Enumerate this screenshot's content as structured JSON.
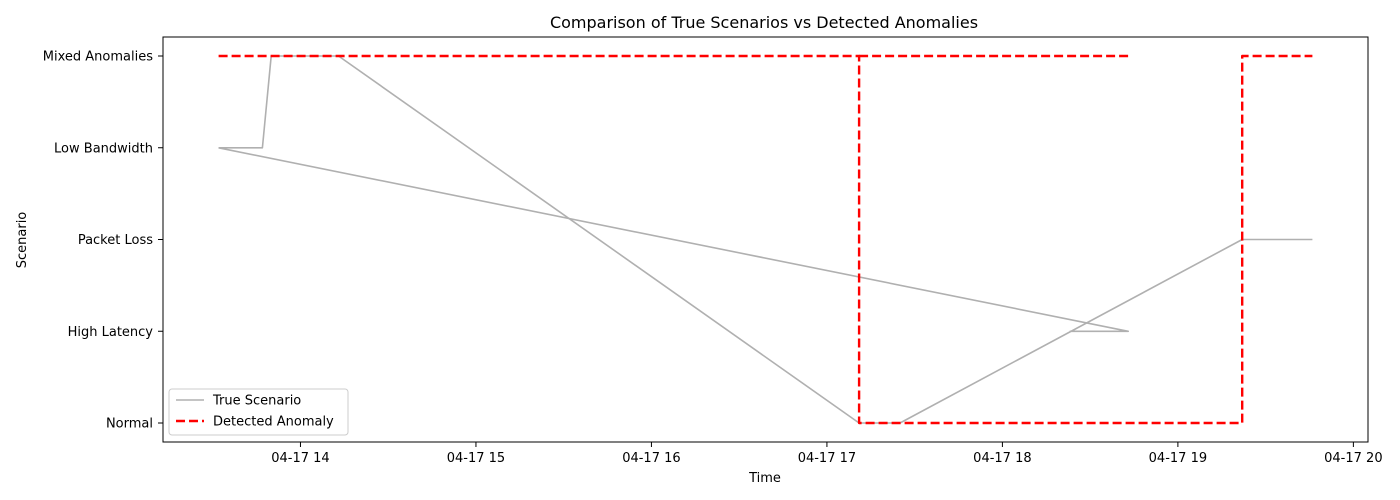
{
  "chart_data": {
    "type": "line",
    "title": "Comparison of True Scenarios vs Detected Anomalies",
    "xlabel": "Time",
    "ylabel": "Scenario",
    "x_ticks": [
      "04-17 14",
      "04-17 15",
      "04-17 16",
      "04-17 17",
      "04-17 18",
      "04-17 19",
      "04-17 20"
    ],
    "y_categories": [
      "Normal",
      "High Latency",
      "Packet Loss",
      "Low Bandwidth",
      "Mixed Anomalies"
    ],
    "xlim": [
      "04-17 13:13",
      "04-17 20:05"
    ],
    "legend_position": "lower-left",
    "series": [
      {
        "name": "True Scenario",
        "color": "#b0b0b0",
        "style": "solid",
        "x": [
          "04-17 13:32",
          "04-17 13:47",
          "04-17 13:50",
          "04-17 14:13",
          "04-17 17:11",
          "04-17 17:25",
          "04-17 19:22",
          "04-17 19:46"
        ],
        "y": [
          "Low Bandwidth",
          "Low Bandwidth",
          "Mixed Anomalies",
          "Mixed Anomalies",
          "Normal",
          "Normal",
          "Packet Loss",
          "Packet Loss"
        ]
      },
      {
        "name": "True Scenario (2)",
        "color": "#b0b0b0",
        "style": "solid",
        "x": [
          "04-17 13:32",
          "04-17 18:43",
          "04-17 18:23"
        ],
        "y": [
          "Low Bandwidth",
          "High Latency",
          "High Latency"
        ]
      },
      {
        "name": "Detected Anomaly",
        "color": "#ff0000",
        "style": "dashed",
        "x": [
          "04-17 13:32",
          "04-17 17:11",
          "04-17 17:11",
          "04-17 19:22",
          "04-17 19:22",
          "04-17 19:46"
        ],
        "y": [
          "Mixed Anomalies",
          "Mixed Anomalies",
          "Normal",
          "Normal",
          "Mixed Anomalies",
          "Mixed Anomalies"
        ]
      },
      {
        "name": "Detected Anomaly (2)",
        "color": "#ff0000",
        "style": "dashed",
        "x": [
          "04-17 17:11",
          "04-17 18:43"
        ],
        "y": [
          "Mixed Anomalies",
          "Mixed Anomalies"
        ]
      }
    ],
    "legend": [
      {
        "label": "True Scenario",
        "color": "#b0b0b0",
        "style": "solid"
      },
      {
        "label": "Detected Anomaly",
        "color": "#ff0000",
        "style": "dashed"
      }
    ]
  }
}
